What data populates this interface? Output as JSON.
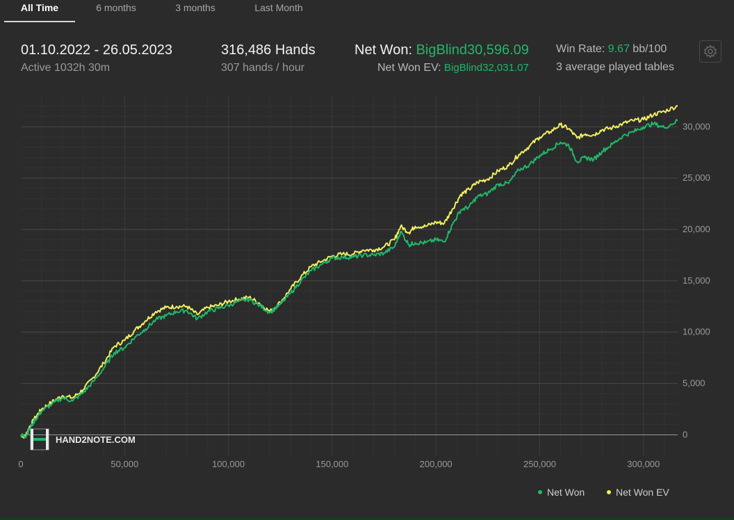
{
  "tabs": [
    {
      "label": "All Time",
      "active": true
    },
    {
      "label": "6 months",
      "active": false
    },
    {
      "label": "3 months",
      "active": false
    },
    {
      "label": "Last Month",
      "active": false
    }
  ],
  "stats": {
    "date_range": "01.10.2022 - 26.05.2023",
    "active_time": "Active 1032h 30m",
    "hands": "316,486 Hands",
    "hands_per_hour": "307 hands / hour",
    "net_won_label": "Net Won:",
    "net_won_value": "BigBlind30,596.09",
    "net_won_ev_label": "Net Won  EV:",
    "net_won_ev_value": "BigBlind32,031.07",
    "win_rate_label": "Win Rate:",
    "win_rate_value": "9.67",
    "win_rate_unit": "bb/100",
    "tables": "3 average played tables"
  },
  "icons": {
    "settings": "gear-icon",
    "watermark": "hand2note-logo-icon"
  },
  "watermark": {
    "text": "HAND2NOTE.COM"
  },
  "colors": {
    "net_won": "#1fb86a",
    "net_won_ev": "#f0ef62",
    "background": "#2b2b2b"
  },
  "legend": [
    {
      "label": "Net Won",
      "color": "#1fb86a"
    },
    {
      "label": "Net Won  EV",
      "color": "#f0ef62"
    }
  ],
  "chart_data": {
    "type": "line",
    "xlim": [
      0,
      316486
    ],
    "ylim": [
      -2000,
      33000
    ],
    "x_ticks": [
      "0",
      "50,000",
      "100,000",
      "150,000",
      "200,000",
      "250,000",
      "300,000"
    ],
    "y_ticks": [
      "0",
      "5,000",
      "10,000",
      "15,000",
      "20,000",
      "25,000",
      "30,000"
    ],
    "grid": true,
    "legend_position": "bottom-right",
    "series": [
      {
        "name": "Net Won",
        "color": "#1fb86a",
        "x": [
          0,
          2000,
          4000,
          7000,
          10000,
          15000,
          20000,
          25000,
          30000,
          35000,
          40000,
          45000,
          50000,
          55000,
          60000,
          65000,
          70000,
          75000,
          80000,
          85000,
          90000,
          95000,
          100000,
          105000,
          110000,
          115000,
          120000,
          125000,
          130000,
          135000,
          140000,
          145000,
          150000,
          155000,
          160000,
          165000,
          170000,
          175000,
          180000,
          183000,
          187000,
          190000,
          195000,
          200000,
          204000,
          208000,
          212000,
          216000,
          220000,
          225000,
          230000,
          235000,
          240000,
          245000,
          250000,
          255000,
          260000,
          264000,
          268000,
          272000,
          276000,
          280000,
          285000,
          290000,
          295000,
          300000,
          305000,
          310000,
          316486
        ],
        "y": [
          0,
          -200,
          500,
          1500,
          2300,
          3000,
          3600,
          3300,
          4100,
          5200,
          6500,
          8000,
          8500,
          9500,
          10300,
          11200,
          11600,
          12000,
          12100,
          11300,
          12000,
          12300,
          12600,
          13000,
          13200,
          12600,
          11900,
          12700,
          13800,
          15000,
          16000,
          16600,
          17200,
          17300,
          17300,
          17500,
          17500,
          17700,
          18300,
          19800,
          18500,
          18700,
          18700,
          19000,
          18800,
          20500,
          21900,
          22200,
          23200,
          23500,
          24400,
          24500,
          25800,
          26300,
          27200,
          27800,
          28500,
          28200,
          26600,
          27000,
          26800,
          27600,
          28300,
          29100,
          29500,
          30000,
          30300,
          29900,
          30596
        ]
      },
      {
        "name": "Net Won  EV",
        "color": "#f0ef62",
        "x": [
          0,
          2000,
          4000,
          7000,
          10000,
          15000,
          20000,
          25000,
          30000,
          35000,
          40000,
          45000,
          50000,
          55000,
          60000,
          65000,
          70000,
          75000,
          80000,
          85000,
          90000,
          95000,
          100000,
          105000,
          110000,
          115000,
          120000,
          125000,
          130000,
          135000,
          140000,
          145000,
          150000,
          155000,
          160000,
          165000,
          170000,
          175000,
          180000,
          183000,
          187000,
          190000,
          195000,
          200000,
          204000,
          208000,
          212000,
          216000,
          220000,
          225000,
          230000,
          235000,
          240000,
          245000,
          250000,
          255000,
          260000,
          264000,
          268000,
          272000,
          276000,
          280000,
          285000,
          290000,
          295000,
          300000,
          305000,
          310000,
          316486
        ],
        "y": [
          0,
          -200,
          700,
          1700,
          2500,
          3200,
          3800,
          3600,
          4400,
          5600,
          7000,
          8600,
          9200,
          10200,
          11100,
          12000,
          12400,
          12500,
          12500,
          11700,
          12400,
          12600,
          13000,
          13200,
          13400,
          12800,
          12000,
          12900,
          14200,
          15400,
          16400,
          16900,
          17400,
          17600,
          17600,
          18000,
          18000,
          18300,
          19000,
          20300,
          19700,
          20300,
          20300,
          20700,
          20600,
          22000,
          23400,
          23900,
          24600,
          24900,
          25700,
          26200,
          27300,
          28100,
          29000,
          29500,
          30200,
          29800,
          28900,
          29300,
          29200,
          29700,
          29900,
          30300,
          30600,
          30700,
          31200,
          31500,
          32031
        ]
      }
    ]
  }
}
